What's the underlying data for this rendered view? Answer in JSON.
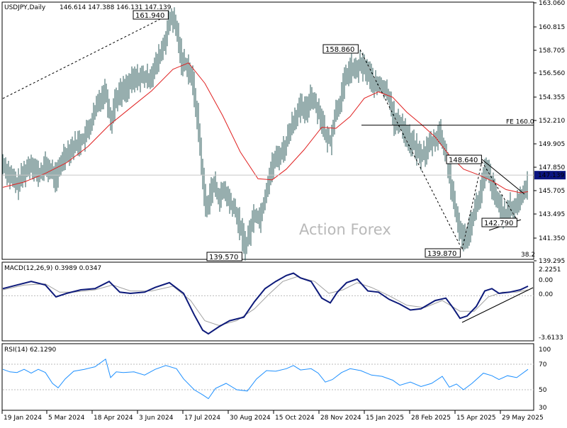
{
  "header": {
    "symbol": "USDJPY,Daily",
    "ohlc": "146.614 147.388 146.131 147.139"
  },
  "watermark": "Action Forex",
  "colors": {
    "candle": "#2f5d5d",
    "ma": "#e02020",
    "macd_main": "#0d1a7a",
    "macd_signal": "#a0a0a0",
    "rsi": "#1e90ff",
    "annotation": "#000000",
    "price_box": "#0b1480"
  },
  "chart_data": [
    {
      "type": "candlestick",
      "name": "price",
      "ylim": [
        139.295,
        163.06
      ],
      "yticks": [
        "163.060",
        "160.815",
        "158.705",
        "156.560",
        "154.355",
        "152.210",
        "149.905",
        "147.850",
        "145.705",
        "143.495",
        "141.350",
        "139.295"
      ],
      "xticks": [
        "19 Jan 2024",
        "5 Mar 2024",
        "18 Apr 2024",
        "3 Jun 2024",
        "17 Jul 2024",
        "30 Aug 2024",
        "15 Oct 2024",
        "28 Nov 2024",
        "15 Jan 2025",
        "28 Feb 2025",
        "15 Apr 2025",
        "29 May 2025"
      ],
      "path_points": [
        [
          0,
          148.2
        ],
        [
          10,
          147.0
        ],
        [
          20,
          146.2
        ],
        [
          30,
          147.4
        ],
        [
          40,
          148.3
        ],
        [
          50,
          147.1
        ],
        [
          60,
          148.0
        ],
        [
          70,
          147.3
        ],
        [
          75,
          146.8
        ],
        [
          85,
          148.9
        ],
        [
          95,
          149.6
        ],
        [
          105,
          150.1
        ],
        [
          115,
          150.6
        ],
        [
          125,
          152.1
        ],
        [
          135,
          154.1
        ],
        [
          145,
          155.1
        ],
        [
          152,
          152.0
        ],
        [
          158,
          154.2
        ],
        [
          165,
          154.8
        ],
        [
          175,
          155.4
        ],
        [
          185,
          156.1
        ],
        [
          195,
          156.3
        ],
        [
          205,
          156.1
        ],
        [
          215,
          157.2
        ],
        [
          222,
          158.4
        ],
        [
          228,
          159.5
        ],
        [
          233,
          161.0
        ],
        [
          238,
          161.9
        ],
        [
          245,
          160.6
        ],
        [
          252,
          157.8
        ],
        [
          260,
          157.4
        ],
        [
          268,
          155.6
        ],
        [
          275,
          152.0
        ],
        [
          282,
          146.6
        ],
        [
          287,
          143.6
        ],
        [
          292,
          145.6
        ],
        [
          298,
          146.2
        ],
        [
          305,
          145.0
        ],
        [
          312,
          145.7
        ],
        [
          320,
          144.6
        ],
        [
          328,
          143.7
        ],
        [
          336,
          141.9
        ],
        [
          342,
          140.5
        ],
        [
          348,
          141.9
        ],
        [
          355,
          143.6
        ],
        [
          362,
          143.1
        ],
        [
          368,
          144.6
        ],
        [
          375,
          146.9
        ],
        [
          382,
          148.4
        ],
        [
          390,
          149.0
        ],
        [
          398,
          149.8
        ],
        [
          405,
          151.4
        ],
        [
          412,
          152.6
        ],
        [
          420,
          153.4
        ],
        [
          427,
          153.0
        ],
        [
          434,
          154.6
        ],
        [
          441,
          153.7
        ],
        [
          448,
          152.7
        ],
        [
          455,
          150.6
        ],
        [
          462,
          150.4
        ],
        [
          469,
          153.0
        ],
        [
          476,
          154.1
        ],
        [
          483,
          156.2
        ],
        [
          490,
          157.1
        ],
        [
          497,
          156.8
        ],
        [
          504,
          157.4
        ],
        [
          511,
          157.1
        ],
        [
          518,
          156.3
        ],
        [
          525,
          155.4
        ],
        [
          532,
          155.6
        ],
        [
          539,
          155.1
        ],
        [
          546,
          154.2
        ],
        [
          553,
          151.8
        ],
        [
          560,
          152.1
        ],
        [
          567,
          151.2
        ],
        [
          574,
          150.3
        ],
        [
          581,
          149.8
        ],
        [
          588,
          148.9
        ],
        [
          595,
          149.2
        ],
        [
          602,
          150.0
        ],
        [
          609,
          150.4
        ],
        [
          616,
          151.2
        ],
        [
          623,
          149.3
        ],
        [
          628,
          148.2
        ],
        [
          633,
          145.6
        ],
        [
          638,
          143.7
        ],
        [
          643,
          142.6
        ],
        [
          648,
          141.2
        ],
        [
          653,
          141.5
        ],
        [
          658,
          142.2
        ],
        [
          664,
          143.6
        ],
        [
          670,
          144.6
        ],
        [
          676,
          146.2
        ],
        [
          681,
          147.7
        ],
        [
          686,
          147.1
        ],
        [
          691,
          145.8
        ],
        [
          696,
          144.8
        ],
        [
          701,
          144.4
        ],
        [
          706,
          143.4
        ],
        [
          711,
          143.5
        ],
        [
          716,
          144.2
        ],
        [
          721,
          143.9
        ],
        [
          726,
          144.6
        ],
        [
          731,
          145.1
        ],
        [
          736,
          145.6
        ],
        [
          741,
          147.14
        ]
      ],
      "ma_points": [
        [
          0,
          146.0
        ],
        [
          30,
          146.5
        ],
        [
          60,
          147.3
        ],
        [
          90,
          148.3
        ],
        [
          120,
          149.8
        ],
        [
          150,
          151.8
        ],
        [
          180,
          153.4
        ],
        [
          210,
          155.0
        ],
        [
          240,
          157.0
        ],
        [
          262,
          157.6
        ],
        [
          285,
          155.7
        ],
        [
          310,
          152.7
        ],
        [
          335,
          149.3
        ],
        [
          360,
          146.8
        ],
        [
          380,
          146.7
        ],
        [
          400,
          147.7
        ],
        [
          425,
          149.5
        ],
        [
          450,
          151.6
        ],
        [
          470,
          151.5
        ],
        [
          490,
          152.6
        ],
        [
          510,
          154.3
        ],
        [
          530,
          154.9
        ],
        [
          550,
          154.4
        ],
        [
          570,
          153.0
        ],
        [
          590,
          151.9
        ],
        [
          610,
          150.7
        ],
        [
          630,
          149.0
        ],
        [
          650,
          147.7
        ],
        [
          670,
          147.2
        ],
        [
          690,
          146.6
        ],
        [
          710,
          145.8
        ],
        [
          730,
          145.5
        ],
        [
          741,
          145.6
        ]
      ],
      "annotations": {
        "labels": [
          {
            "text": "161.940",
            "x": "3 Jun 2024",
            "value": 161.94
          },
          {
            "text": "139.570",
            "x": "30 Aug 2024",
            "value": 139.57
          },
          {
            "text": "158.860",
            "x": "28 Nov 2024",
            "value": 158.86
          },
          {
            "text": "148.640",
            "x": "15 Apr 2025",
            "value": 148.64
          },
          {
            "text": "139.870",
            "x": "15 Apr 2025",
            "value": 139.87
          },
          {
            "text": "142.790",
            "x": "29 May 2025",
            "value": 142.79
          }
        ],
        "fe_label": "FE 160.0",
        "fe_level": 151.8,
        "fib_label": "38.2",
        "current_price": "147.139"
      }
    },
    {
      "type": "line",
      "name": "MACD",
      "title": "MACD(12,26,9) 0.3989 0.0347",
      "yticks": [
        "2.2251",
        "0.00",
        "0.00",
        "-3.6133"
      ],
      "ylim": [
        -3.6133,
        2.2251
      ],
      "main_points": [
        [
          0,
          0.6
        ],
        [
          20,
          0.9
        ],
        [
          40,
          1.2
        ],
        [
          60,
          0.9
        ],
        [
          75,
          -0.1
        ],
        [
          90,
          0.2
        ],
        [
          110,
          0.5
        ],
        [
          130,
          0.6
        ],
        [
          150,
          1.2
        ],
        [
          165,
          0.3
        ],
        [
          180,
          0.2
        ],
        [
          200,
          0.3
        ],
        [
          215,
          0.7
        ],
        [
          235,
          1.1
        ],
        [
          255,
          0.2
        ],
        [
          270,
          -1.6
        ],
        [
          282,
          -2.9
        ],
        [
          290,
          -3.2
        ],
        [
          305,
          -2.6
        ],
        [
          320,
          -2.1
        ],
        [
          340,
          -1.8
        ],
        [
          355,
          -0.5
        ],
        [
          370,
          0.6
        ],
        [
          385,
          1.2
        ],
        [
          400,
          1.7
        ],
        [
          410,
          1.9
        ],
        [
          420,
          1.5
        ],
        [
          435,
          1.2
        ],
        [
          450,
          -0.2
        ],
        [
          462,
          -0.6
        ],
        [
          472,
          0.3
        ],
        [
          485,
          1.1
        ],
        [
          500,
          1.4
        ],
        [
          515,
          0.4
        ],
        [
          530,
          0.3
        ],
        [
          545,
          -0.3
        ],
        [
          560,
          -0.7
        ],
        [
          575,
          -1.2
        ],
        [
          590,
          -1.1
        ],
        [
          610,
          -0.4
        ],
        [
          625,
          -0.2
        ],
        [
          635,
          -1.0
        ],
        [
          645,
          -1.9
        ],
        [
          655,
          -1.7
        ],
        [
          668,
          -0.9
        ],
        [
          680,
          0.4
        ],
        [
          690,
          0.6
        ],
        [
          700,
          0.2
        ],
        [
          715,
          0.3
        ],
        [
          730,
          0.5
        ],
        [
          741,
          0.8
        ]
      ],
      "signal_points": [
        [
          0,
          0.5
        ],
        [
          30,
          0.9
        ],
        [
          60,
          1.0
        ],
        [
          80,
          0.3
        ],
        [
          100,
          0.3
        ],
        [
          130,
          0.5
        ],
        [
          155,
          0.9
        ],
        [
          180,
          0.4
        ],
        [
          210,
          0.4
        ],
        [
          240,
          0.8
        ],
        [
          265,
          -0.4
        ],
        [
          285,
          -2.1
        ],
        [
          305,
          -2.5
        ],
        [
          330,
          -2.1
        ],
        [
          355,
          -1.1
        ],
        [
          375,
          0.1
        ],
        [
          395,
          1.2
        ],
        [
          415,
          1.6
        ],
        [
          440,
          1.2
        ],
        [
          460,
          0.2
        ],
        [
          480,
          0.5
        ],
        [
          500,
          1.1
        ],
        [
          520,
          0.7
        ],
        [
          545,
          0.0
        ],
        [
          570,
          -0.8
        ],
        [
          595,
          -1.0
        ],
        [
          620,
          -0.4
        ],
        [
          645,
          -1.3
        ],
        [
          665,
          -1.3
        ],
        [
          685,
          -0.1
        ],
        [
          705,
          0.3
        ],
        [
          725,
          0.3
        ],
        [
          741,
          0.5
        ]
      ]
    },
    {
      "type": "line",
      "name": "RSI",
      "title": "RSI(14) 62.1290",
      "ylim": [
        0,
        100
      ],
      "yticks": [
        "100",
        "70",
        "50",
        "30"
      ],
      "points": [
        [
          0,
          62
        ],
        [
          10,
          58
        ],
        [
          20,
          57
        ],
        [
          30,
          62
        ],
        [
          40,
          56
        ],
        [
          50,
          62
        ],
        [
          60,
          57
        ],
        [
          70,
          40
        ],
        [
          78,
          33
        ],
        [
          88,
          47
        ],
        [
          100,
          59
        ],
        [
          115,
          62
        ],
        [
          130,
          66
        ],
        [
          145,
          78
        ],
        [
          152,
          49
        ],
        [
          160,
          58
        ],
        [
          170,
          57
        ],
        [
          185,
          58
        ],
        [
          200,
          53
        ],
        [
          215,
          62
        ],
        [
          230,
          68
        ],
        [
          245,
          63
        ],
        [
          255,
          47
        ],
        [
          270,
          30
        ],
        [
          282,
          22
        ],
        [
          290,
          16
        ],
        [
          300,
          32
        ],
        [
          315,
          40
        ],
        [
          330,
          30
        ],
        [
          345,
          28
        ],
        [
          358,
          47
        ],
        [
          372,
          60
        ],
        [
          385,
          59
        ],
        [
          400,
          63
        ],
        [
          410,
          68
        ],
        [
          420,
          61
        ],
        [
          435,
          63
        ],
        [
          445,
          56
        ],
        [
          455,
          42
        ],
        [
          465,
          46
        ],
        [
          478,
          57
        ],
        [
          490,
          63
        ],
        [
          505,
          60
        ],
        [
          520,
          53
        ],
        [
          535,
          51
        ],
        [
          550,
          45
        ],
        [
          560,
          37
        ],
        [
          575,
          42
        ],
        [
          590,
          35
        ],
        [
          605,
          40
        ],
        [
          620,
          51
        ],
        [
          630,
          34
        ],
        [
          640,
          39
        ],
        [
          650,
          30
        ],
        [
          662,
          40
        ],
        [
          678,
          56
        ],
        [
          690,
          52
        ],
        [
          700,
          46
        ],
        [
          712,
          52
        ],
        [
          725,
          49
        ],
        [
          741,
          62
        ]
      ]
    }
  ]
}
